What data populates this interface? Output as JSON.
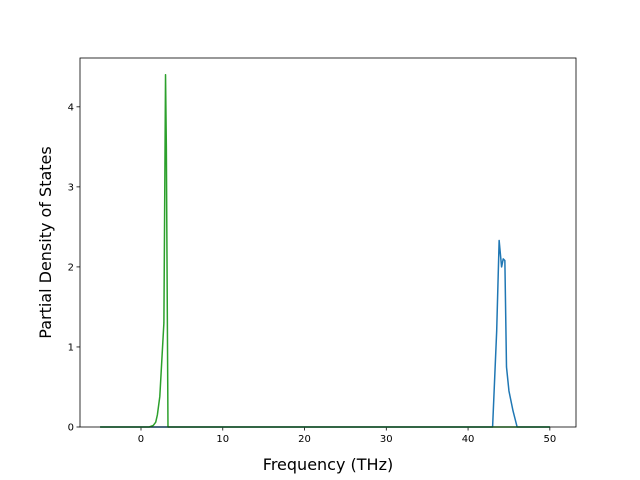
{
  "chart_data": {
    "type": "line",
    "x_label": "Frequency (THz)",
    "y_label": "Partial Density of States",
    "xlim": [
      -7.46,
      53.2
    ],
    "ylim": [
      0,
      4.61
    ],
    "xticks": [
      0,
      10,
      20,
      30,
      40,
      50
    ],
    "yticks": [
      0,
      1,
      2,
      3,
      4
    ],
    "grid": false,
    "series": [
      {
        "color": "#1f77b4",
        "x": [
          -5,
          43,
          43.5,
          43.8,
          44.1,
          44.3,
          44.5,
          44.7,
          45.0,
          45.5,
          46.0,
          50
        ],
        "values": [
          0,
          0,
          1.2,
          2.33,
          2.0,
          2.1,
          2.08,
          0.75,
          0.45,
          0.2,
          0,
          0
        ]
      },
      {
        "color": "#2ca02c",
        "x": [
          -5,
          1,
          1.5,
          1.8,
          2.0,
          2.3,
          2.8,
          3.0,
          3.1,
          3.3,
          50
        ],
        "values": [
          0,
          0,
          0.02,
          0.06,
          0.15,
          0.38,
          1.3,
          4.4,
          3.5,
          0,
          0
        ]
      }
    ]
  }
}
